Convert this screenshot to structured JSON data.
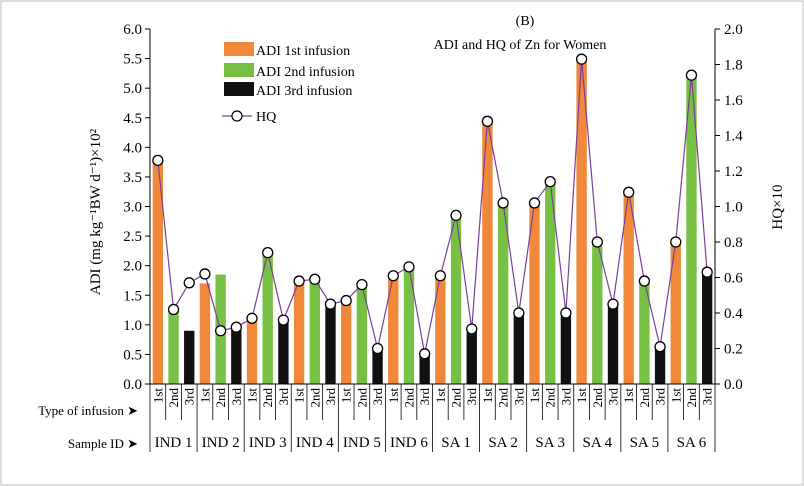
{
  "chart_data": {
    "type": "bar",
    "panel_label": "(B)",
    "title": "ADI and HQ of Zn for Women",
    "ylabel": "ADI (mg kg⁻¹BW d⁻¹)×10²",
    "y2label": "HQ×10",
    "ylim": [
      0,
      6
    ],
    "y2lim": [
      0,
      2
    ],
    "yticks": [
      "0.0",
      "0.5",
      "1.0",
      "1.5",
      "2.0",
      "2.5",
      "3.0",
      "3.5",
      "4.0",
      "4.5",
      "5.0",
      "5.5",
      "6.0"
    ],
    "y2ticks": [
      "0.0",
      "0.2",
      "0.4",
      "0.6",
      "0.8",
      "1.0",
      "1.2",
      "1.4",
      "1.6",
      "1.8",
      "2.0"
    ],
    "row_labels": {
      "infusion": "Type of infusion ➤",
      "sample": "Sample ID ➤"
    },
    "infusion_labels": [
      "1st",
      "2nd",
      "3rd"
    ],
    "groups": [
      "IND 1",
      "IND 2",
      "IND 3",
      "IND 4",
      "IND 5",
      "IND 6",
      "SA 1",
      "SA 2",
      "SA 3",
      "SA 4",
      "SA 5",
      "SA 6"
    ],
    "legend": [
      {
        "label": "ADI 1st infusion",
        "color": "#f0883a",
        "kind": "bar"
      },
      {
        "label": "ADI 2nd infusion",
        "color": "#77c043",
        "kind": "bar"
      },
      {
        "label": "ADI 3rd infusion",
        "color": "#111111",
        "kind": "bar"
      },
      {
        "label": "HQ",
        "color": "#7a3f9d",
        "kind": "line"
      }
    ],
    "grid": false,
    "legend_position": "top-left",
    "series": [
      {
        "name": "ADI 1st infusion",
        "values": [
          3.8,
          1.7,
          1.1,
          1.75,
          1.4,
          1.8,
          1.85,
          4.45,
          3.05,
          5.5,
          3.25,
          2.4
        ]
      },
      {
        "name": "ADI 2nd infusion",
        "values": [
          1.25,
          1.85,
          2.25,
          1.75,
          1.7,
          1.95,
          2.85,
          3.05,
          3.4,
          2.4,
          1.75,
          5.2
        ]
      },
      {
        "name": "ADI 3rd infusion",
        "values": [
          0.9,
          0.95,
          1.1,
          1.35,
          0.6,
          0.5,
          0.9,
          1.2,
          1.2,
          1.35,
          0.6,
          1.85
        ]
      }
    ],
    "hq": [
      1.26,
      0.42,
      0.57,
      0.62,
      0.3,
      0.32,
      0.37,
      0.74,
      0.36,
      0.58,
      0.59,
      0.45,
      0.47,
      0.56,
      0.2,
      0.61,
      0.66,
      0.17,
      0.61,
      0.95,
      0.31,
      1.48,
      1.02,
      0.4,
      1.02,
      1.14,
      0.4,
      1.83,
      0.8,
      0.45,
      1.08,
      0.58,
      0.21,
      0.8,
      1.74,
      0.63
    ]
  }
}
